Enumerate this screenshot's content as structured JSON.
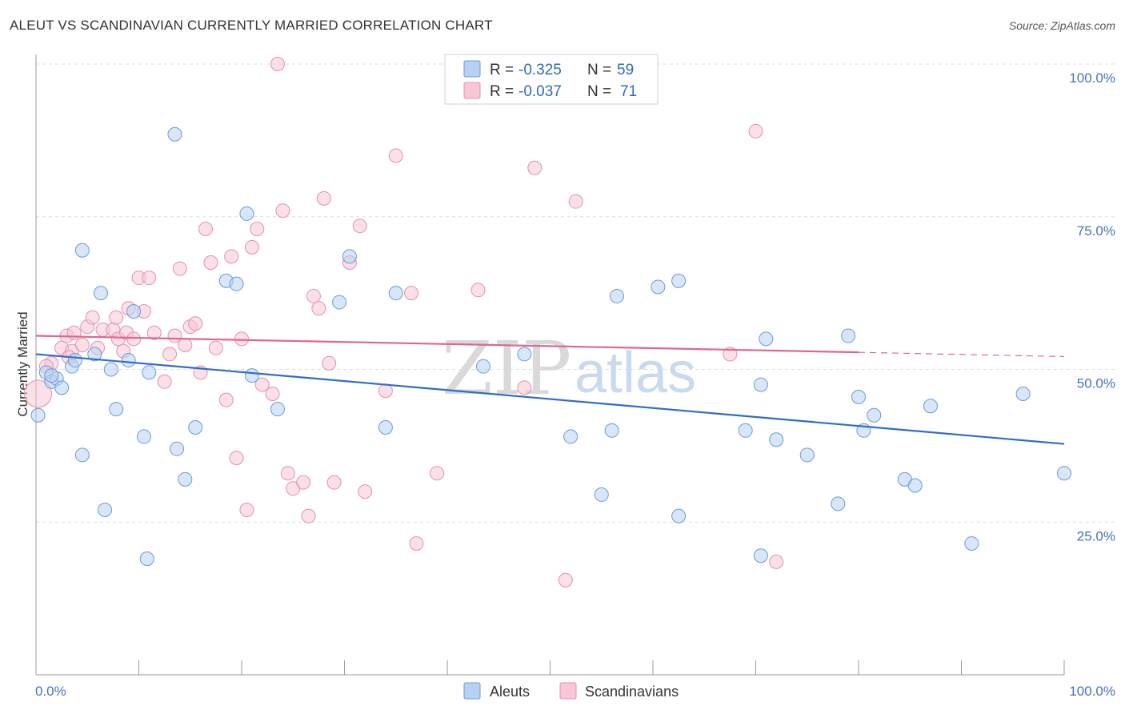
{
  "header": {
    "title": "ALEUT VS SCANDINAVIAN CURRENTLY MARRIED CORRELATION CHART",
    "source": "Source: ZipAtlas.com"
  },
  "watermark": {
    "zip": "ZIP",
    "atlas": "atlas"
  },
  "legend": {
    "r_label": "R =",
    "n_label": "N =",
    "aleuts": {
      "r": "-0.325",
      "n": "59"
    },
    "scandinavians": {
      "r": "-0.037",
      "n": "71"
    }
  },
  "bottom_legend": {
    "aleuts": "Aleuts",
    "scandinavians": "Scandinavians"
  },
  "colors": {
    "aleuts_fill": "#b8d1f3",
    "aleuts_stroke": "#6a9bd8",
    "aleuts_line": "#2f6cc8",
    "scand_fill": "#f8c6d6",
    "scand_stroke": "#e590ad",
    "scand_line": "#e0668f",
    "grid": "#dddddd",
    "axis_label": "#4472c4"
  },
  "chart_data": {
    "type": "scatter",
    "title": "ALEUT VS SCANDINAVIAN CURRENTLY MARRIED CORRELATION CHART",
    "xlabel": "",
    "ylabel": "Currently Married",
    "xlim": [
      0,
      100
    ],
    "ylim": [
      0,
      100
    ],
    "x_tick_labels": [
      "0.0%",
      "100.0%"
    ],
    "y_tick_labels": [
      "100.0%",
      "75.0%",
      "50.0%",
      "25.0%"
    ],
    "y_ticks": [
      100,
      75,
      50,
      25
    ],
    "grid": true,
    "series": [
      {
        "name": "Aleuts",
        "points": [
          [
            0.2,
            42.5
          ],
          [
            1.0,
            49.5
          ],
          [
            1.5,
            48.0
          ],
          [
            2.0,
            48.5
          ],
          [
            2.5,
            47.0
          ],
          [
            3.5,
            50.5
          ],
          [
            3.8,
            51.5
          ],
          [
            4.5,
            36.0
          ],
          [
            4.5,
            69.5
          ],
          [
            5.7,
            52.5
          ],
          [
            6.3,
            62.5
          ],
          [
            6.7,
            27.0
          ],
          [
            7.3,
            50.0
          ],
          [
            7.8,
            43.5
          ],
          [
            9.0,
            51.5
          ],
          [
            9.5,
            59.5
          ],
          [
            10.5,
            39.0
          ],
          [
            10.8,
            19.0
          ],
          [
            11.0,
            49.5
          ],
          [
            13.5,
            88.5
          ],
          [
            13.7,
            37.0
          ],
          [
            14.5,
            32.0
          ],
          [
            15.5,
            40.5
          ],
          [
            18.5,
            64.5
          ],
          [
            19.5,
            64.0
          ],
          [
            20.5,
            75.5
          ],
          [
            21.0,
            49.0
          ],
          [
            23.5,
            43.5
          ],
          [
            29.5,
            61.0
          ],
          [
            30.5,
            68.5
          ],
          [
            34.0,
            40.5
          ],
          [
            35.0,
            62.5
          ],
          [
            43.5,
            50.5
          ],
          [
            47.5,
            52.5
          ],
          [
            52.0,
            39.0
          ],
          [
            55.0,
            29.5
          ],
          [
            56.0,
            40.0
          ],
          [
            56.5,
            62.0
          ],
          [
            60.5,
            63.5
          ],
          [
            62.5,
            26.0
          ],
          [
            62.5,
            64.5
          ],
          [
            69.0,
            40.0
          ],
          [
            70.5,
            47.5
          ],
          [
            70.5,
            19.5
          ],
          [
            71.0,
            55.0
          ],
          [
            72.0,
            38.5
          ],
          [
            75.0,
            36.0
          ],
          [
            78.0,
            28.0
          ],
          [
            79.0,
            55.5
          ],
          [
            80.0,
            45.5
          ],
          [
            80.5,
            40.0
          ],
          [
            81.5,
            42.5
          ],
          [
            84.5,
            32.0
          ],
          [
            85.5,
            31.0
          ],
          [
            87.0,
            44.0
          ],
          [
            91.0,
            21.5
          ],
          [
            96.0,
            46.0
          ],
          [
            100.0,
            33.0
          ],
          [
            1.5,
            49.0
          ]
        ]
      },
      {
        "name": "Scandinavians",
        "points": [
          [
            0.2,
            46.0
          ],
          [
            1.5,
            51.0
          ],
          [
            2.5,
            53.5
          ],
          [
            3.0,
            55.5
          ],
          [
            3.5,
            53.0
          ],
          [
            3.7,
            56.0
          ],
          [
            4.5,
            54.0
          ],
          [
            5.0,
            57.0
          ],
          [
            5.5,
            58.5
          ],
          [
            6.0,
            53.5
          ],
          [
            6.5,
            56.5
          ],
          [
            7.5,
            56.5
          ],
          [
            7.8,
            58.5
          ],
          [
            8.0,
            55.0
          ],
          [
            8.5,
            53.0
          ],
          [
            8.8,
            56.0
          ],
          [
            9.5,
            55.0
          ],
          [
            10.0,
            65.0
          ],
          [
            10.5,
            59.5
          ],
          [
            11.0,
            65.0
          ],
          [
            11.5,
            56.0
          ],
          [
            12.5,
            48.0
          ],
          [
            13.0,
            52.5
          ],
          [
            13.5,
            55.5
          ],
          [
            14.0,
            66.5
          ],
          [
            14.5,
            54.0
          ],
          [
            15.0,
            57.0
          ],
          [
            15.5,
            57.5
          ],
          [
            16.0,
            49.5
          ],
          [
            16.5,
            73.0
          ],
          [
            17.0,
            67.5
          ],
          [
            17.5,
            53.5
          ],
          [
            18.5,
            45.0
          ],
          [
            19.0,
            68.5
          ],
          [
            19.5,
            35.5
          ],
          [
            20.0,
            55.0
          ],
          [
            20.5,
            27.0
          ],
          [
            21.0,
            70.0
          ],
          [
            21.5,
            73.0
          ],
          [
            22.0,
            47.5
          ],
          [
            23.0,
            46.0
          ],
          [
            23.5,
            100.0
          ],
          [
            24.0,
            76.0
          ],
          [
            24.5,
            33.0
          ],
          [
            25.0,
            30.5
          ],
          [
            26.0,
            31.5
          ],
          [
            26.5,
            26.0
          ],
          [
            27.0,
            62.0
          ],
          [
            27.5,
            60.0
          ],
          [
            28.0,
            78.0
          ],
          [
            28.5,
            51.0
          ],
          [
            29.0,
            31.5
          ],
          [
            30.5,
            67.5
          ],
          [
            31.5,
            73.5
          ],
          [
            32.0,
            30.0
          ],
          [
            34.0,
            46.5
          ],
          [
            35.0,
            85.0
          ],
          [
            36.5,
            62.5
          ],
          [
            37.0,
            21.5
          ],
          [
            39.0,
            33.0
          ],
          [
            43.0,
            63.0
          ],
          [
            47.5,
            47.0
          ],
          [
            48.5,
            83.0
          ],
          [
            51.5,
            15.5
          ],
          [
            52.5,
            77.5
          ],
          [
            67.5,
            52.5
          ],
          [
            70.0,
            89.0
          ],
          [
            72.0,
            18.5
          ],
          [
            1.0,
            50.5
          ],
          [
            3.2,
            52.0
          ],
          [
            9.0,
            60.0
          ]
        ]
      }
    ],
    "trendlines": [
      {
        "series": "Aleuts",
        "x": [
          0,
          100
        ],
        "y": [
          52.5,
          37.8
        ]
      },
      {
        "series": "Scandinavians",
        "x": [
          0,
          80
        ],
        "y": [
          55.5,
          52.8
        ],
        "dashed_extension": {
          "x": [
            80,
            100
          ],
          "y": [
            52.8,
            52.1
          ]
        }
      }
    ]
  }
}
